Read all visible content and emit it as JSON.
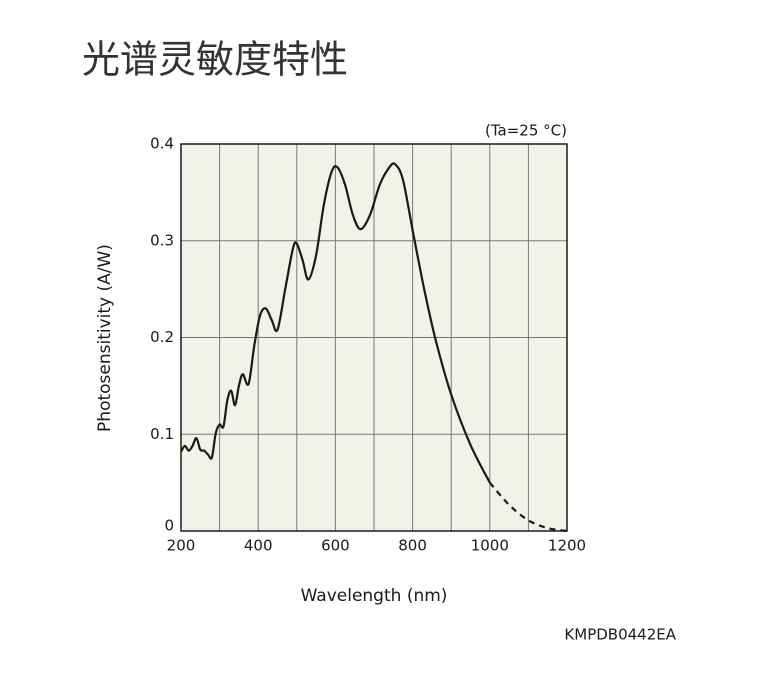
{
  "chart_data": {
    "type": "line",
    "title": "光谱灵敏度特性",
    "annotation": "(Ta=25 °C)",
    "code": "KMPDB0442EA",
    "xlabel": "Wavelength (nm)",
    "ylabel": "Photosensitivity (A/W)",
    "xlim": [
      200,
      1200
    ],
    "ylim": [
      0,
      0.4
    ],
    "xticks": [
      200,
      400,
      600,
      800,
      1000,
      1200
    ],
    "x_minor_gridlines": [
      300,
      500,
      700,
      900,
      1100
    ],
    "yticks": [
      0,
      0.1,
      0.2,
      0.3,
      0.4
    ],
    "grid": true,
    "background": "#f3f2ea",
    "series": [
      {
        "style": "solid",
        "color": "#1a1a1a",
        "x": [
          200,
          210,
          220,
          230,
          240,
          250,
          260,
          270,
          280,
          290,
          300,
          310,
          320,
          330,
          340,
          350,
          360,
          375,
          390,
          405,
          420,
          435,
          450,
          470,
          490,
          500,
          515,
          530,
          550,
          570,
          590,
          605,
          625,
          645,
          665,
          690,
          715,
          740,
          755,
          775,
          800,
          830,
          860,
          900,
          950,
          1000
        ],
        "values": [
          0.082,
          0.088,
          0.083,
          0.088,
          0.096,
          0.084,
          0.083,
          0.079,
          0.076,
          0.101,
          0.11,
          0.108,
          0.135,
          0.145,
          0.13,
          0.15,
          0.162,
          0.152,
          0.192,
          0.223,
          0.23,
          0.218,
          0.208,
          0.25,
          0.292,
          0.297,
          0.28,
          0.26,
          0.285,
          0.337,
          0.371,
          0.376,
          0.358,
          0.327,
          0.312,
          0.327,
          0.358,
          0.376,
          0.379,
          0.363,
          0.311,
          0.25,
          0.197,
          0.141,
          0.089,
          0.05
        ]
      },
      {
        "style": "dashed",
        "color": "#1a1a1a",
        "x": [
          1000,
          1050,
          1100,
          1150,
          1200
        ],
        "values": [
          0.05,
          0.027,
          0.011,
          0.003,
          0
        ]
      }
    ]
  }
}
